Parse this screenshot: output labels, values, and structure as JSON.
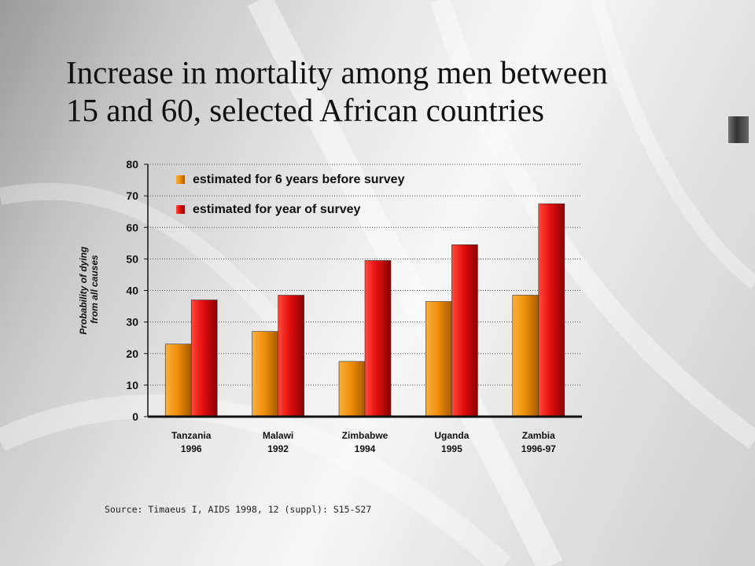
{
  "title_lines": [
    "Increase in mortality among men between",
    "15 and 60, selected African countries"
  ],
  "source": "Source: Timaeus I, AIDS 1998, 12 (suppl): S15-S27",
  "colors": {
    "series_before": "#f0900a",
    "series_year": "#e30f0f",
    "axis": "#111111"
  },
  "chart_data": {
    "type": "bar",
    "categories": [
      [
        "Tanzania",
        "1996"
      ],
      [
        "Malawi",
        "1992"
      ],
      [
        "Zimbabwe",
        "1994"
      ],
      [
        "Uganda",
        "1995"
      ],
      [
        "Zambia",
        "1996-97"
      ]
    ],
    "series": [
      {
        "name": "estimated for 6 years before survey",
        "values": [
          23,
          27,
          17.5,
          36.5,
          38.5
        ]
      },
      {
        "name": "estimated for year of survey",
        "values": [
          37,
          38.5,
          49.5,
          54.5,
          67.5
        ]
      }
    ],
    "ylabel": [
      "Probability of dying",
      "from all causes"
    ],
    "ylim": [
      0,
      80
    ],
    "yticks": [
      0,
      10,
      20,
      30,
      40,
      50,
      60,
      70,
      80
    ],
    "grid": "dotted horizontal",
    "legend": "top-left inside plot"
  }
}
